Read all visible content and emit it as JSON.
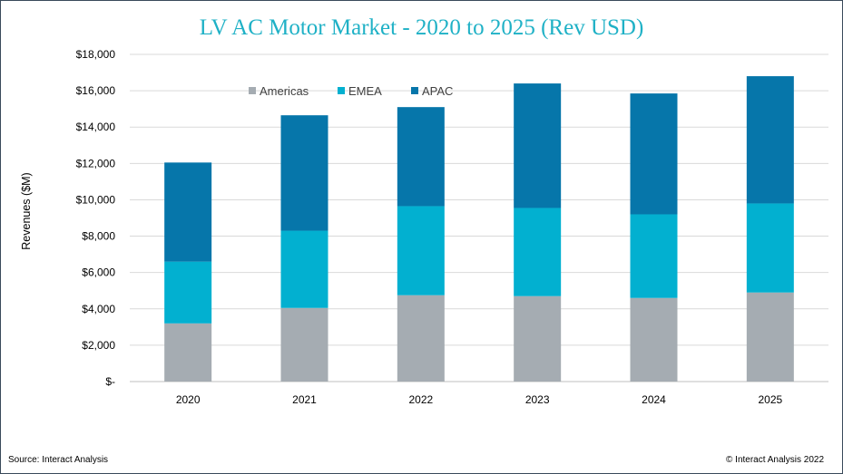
{
  "chart_data": {
    "type": "bar",
    "stacked": true,
    "title": "LV AC Motor Market - 2020 to 2025 (Rev USD)",
    "ylabel": "Revenues ($M)",
    "xlabel": "",
    "categories": [
      "2020",
      "2021",
      "2022",
      "2023",
      "2024",
      "2025"
    ],
    "series": [
      {
        "name": "Americas",
        "color": "#a5acb2",
        "values": [
          3200,
          4050,
          4750,
          4700,
          4600,
          4900
        ]
      },
      {
        "name": "EMEA",
        "color": "#02b0d0",
        "values": [
          3400,
          4250,
          4900,
          4850,
          4600,
          4900
        ]
      },
      {
        "name": "APAC",
        "color": "#0676aa",
        "values": [
          5450,
          6350,
          5450,
          6850,
          6650,
          7000
        ]
      }
    ],
    "ylim": [
      0,
      18000
    ],
    "yticks": [
      0,
      2000,
      4000,
      6000,
      8000,
      10000,
      12000,
      14000,
      16000,
      18000
    ],
    "ytick_labels": [
      "$-",
      "$2,000",
      "$4,000",
      "$6,000",
      "$8,000",
      "$10,000",
      "$12,000",
      "$14,000",
      "$16,000",
      "$18,000"
    ],
    "grid": true,
    "legend_position": "top-center"
  },
  "footer": {
    "source": "Source: Interact Analysis",
    "copyright": "© Interact Analysis 2022"
  }
}
